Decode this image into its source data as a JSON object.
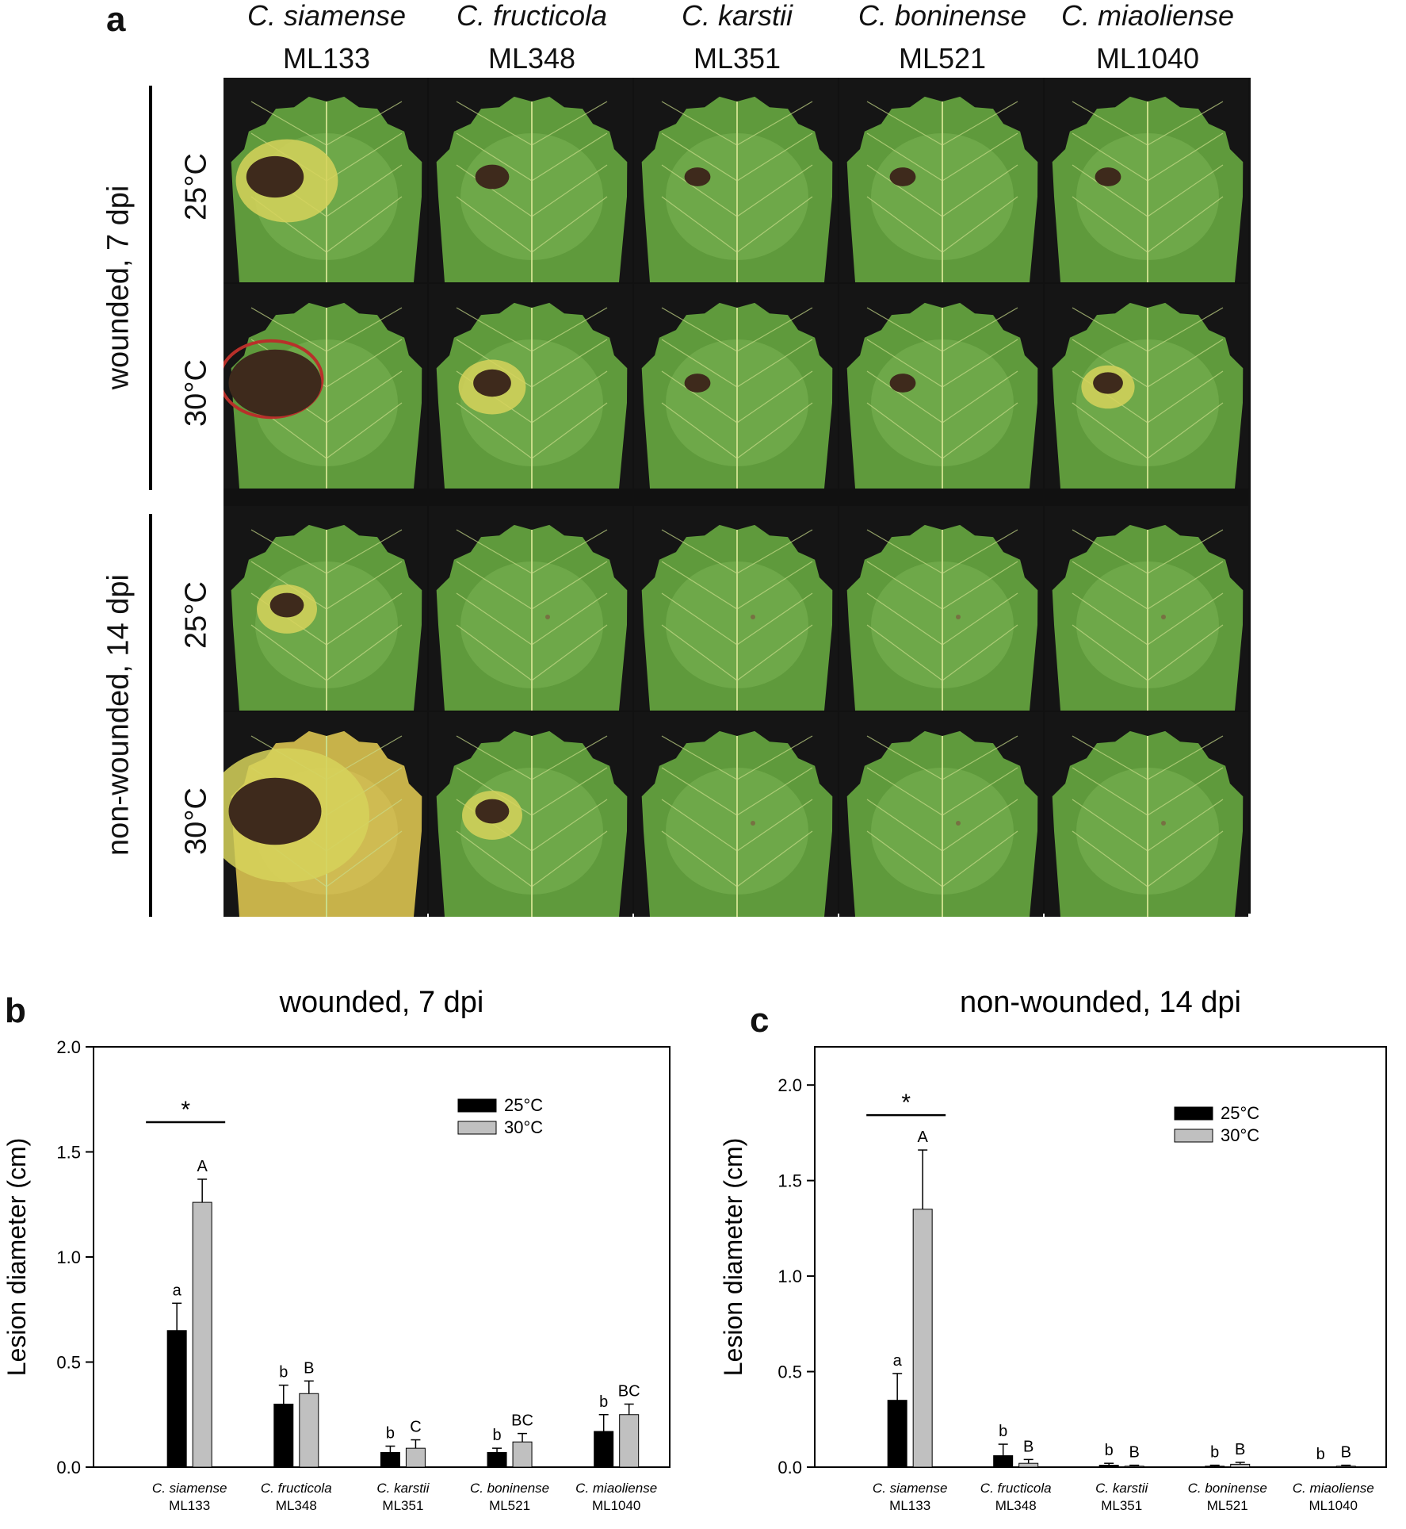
{
  "panel_a": {
    "letter": "a",
    "columns": [
      {
        "species": "C. siamense",
        "strain": "ML133"
      },
      {
        "species": "C. fructicola",
        "strain": "ML348"
      },
      {
        "species": "C. karstii",
        "strain": "ML351"
      },
      {
        "species": "C. boninense",
        "strain": "ML521"
      },
      {
        "species": "C. miaoliense",
        "strain": "ML1040"
      }
    ],
    "groups": [
      {
        "label": "wounded, 7 dpi",
        "rows": [
          "25°C",
          "30°C"
        ]
      },
      {
        "label": "non-wounded, 14 dpi",
        "rows": [
          "25°C",
          "30°C"
        ]
      }
    ],
    "leaves": [
      [
        {
          "lesion": 0.55,
          "halo": "yellow"
        },
        {
          "lesion": 0.25,
          "halo": "none"
        },
        {
          "lesion": 0.15,
          "halo": "none"
        },
        {
          "lesion": 0.15,
          "halo": "none"
        },
        {
          "lesion": 0.15,
          "halo": "none"
        }
      ],
      [
        {
          "lesion": 1.0,
          "halo": "red"
        },
        {
          "lesion": 0.3,
          "halo": "yellow"
        },
        {
          "lesion": 0.15,
          "halo": "none"
        },
        {
          "lesion": 0.15,
          "halo": "none"
        },
        {
          "lesion": 0.2,
          "halo": "yellow"
        }
      ],
      [
        {
          "lesion": 0.25,
          "halo": "yellow"
        },
        {
          "lesion": 0.0,
          "halo": "none"
        },
        {
          "lesion": 0.0,
          "halo": "none"
        },
        {
          "lesion": 0.0,
          "halo": "none"
        },
        {
          "lesion": 0.0,
          "halo": "none"
        }
      ],
      [
        {
          "lesion": 1.0,
          "halo": "yellow-leaf"
        },
        {
          "lesion": 0.25,
          "halo": "yellow"
        },
        {
          "lesion": 0.0,
          "halo": "none"
        },
        {
          "lesion": 0.0,
          "halo": "none"
        },
        {
          "lesion": 0.0,
          "halo": "none"
        }
      ]
    ],
    "colors": {
      "leaf": "#5f9a3c",
      "leaf_light": "#7db655",
      "vein": "#c9dc8a",
      "lesion": "#3e2a1c",
      "halo_yellow": "#d6d25a",
      "halo_red": "#b8302a",
      "background": "#151515"
    }
  },
  "chart_data": [
    {
      "type": "bar",
      "panel": "b",
      "title": "wounded, 7 dpi",
      "xlabel": "",
      "ylabel": "Lesion diameter (cm)",
      "ylim": [
        0,
        2.0
      ],
      "yticks": [
        "0.0",
        "0.5",
        "1.0",
        "1.5",
        "2.0"
      ],
      "categories": [
        {
          "species": "C. siamense",
          "strain": "ML133"
        },
        {
          "species": "C. fructicola",
          "strain": "ML348"
        },
        {
          "species": "C. karstii",
          "strain": "ML351"
        },
        {
          "species": "C. boninense",
          "strain": "ML521"
        },
        {
          "species": "C. miaoliense",
          "strain": "ML1040"
        }
      ],
      "series": [
        {
          "name": "25°C",
          "color": "#000000",
          "values": [
            0.65,
            0.3,
            0.07,
            0.07,
            0.17
          ],
          "errors": [
            0.13,
            0.09,
            0.03,
            0.02,
            0.08
          ],
          "letters": [
            "a",
            "b",
            "b",
            "b",
            "b"
          ]
        },
        {
          "name": "30°C",
          "color": "#c0c0c0",
          "values": [
            1.26,
            0.35,
            0.09,
            0.12,
            0.25
          ],
          "errors": [
            0.11,
            0.06,
            0.04,
            0.04,
            0.05
          ],
          "letters": [
            "A",
            "B",
            "C",
            "BC",
            "BC"
          ]
        }
      ],
      "significance": "*",
      "legend": "top-right",
      "grid": false
    },
    {
      "type": "bar",
      "panel": "c",
      "title": "non-wounded, 14 dpi",
      "xlabel": "",
      "ylabel": "Lesion diameter (cm)",
      "ylim": [
        0,
        2.2
      ],
      "yticks": [
        "0.0",
        "0.5",
        "1.0",
        "1.5",
        "2.0"
      ],
      "categories": [
        {
          "species": "C. siamense",
          "strain": "ML133"
        },
        {
          "species": "C. fructicola",
          "strain": "ML348"
        },
        {
          "species": "C. karstii",
          "strain": "ML351"
        },
        {
          "species": "C. boninense",
          "strain": "ML521"
        },
        {
          "species": "C. miaoliense",
          "strain": "ML1040"
        }
      ],
      "series": [
        {
          "name": "25°C",
          "color": "#000000",
          "values": [
            0.35,
            0.06,
            0.01,
            0.005,
            0.0
          ],
          "errors": [
            0.14,
            0.06,
            0.01,
            0.005,
            0.0
          ],
          "letters": [
            "a",
            "b",
            "b",
            "b",
            "b"
          ]
        },
        {
          "name": "30°C",
          "color": "#c0c0c0",
          "values": [
            1.35,
            0.02,
            0.005,
            0.015,
            0.005
          ],
          "errors": [
            0.31,
            0.02,
            0.005,
            0.01,
            0.005
          ],
          "letters": [
            "A",
            "B",
            "B",
            "B",
            "B"
          ]
        }
      ],
      "significance": "*",
      "legend": "top-right",
      "grid": false
    }
  ]
}
